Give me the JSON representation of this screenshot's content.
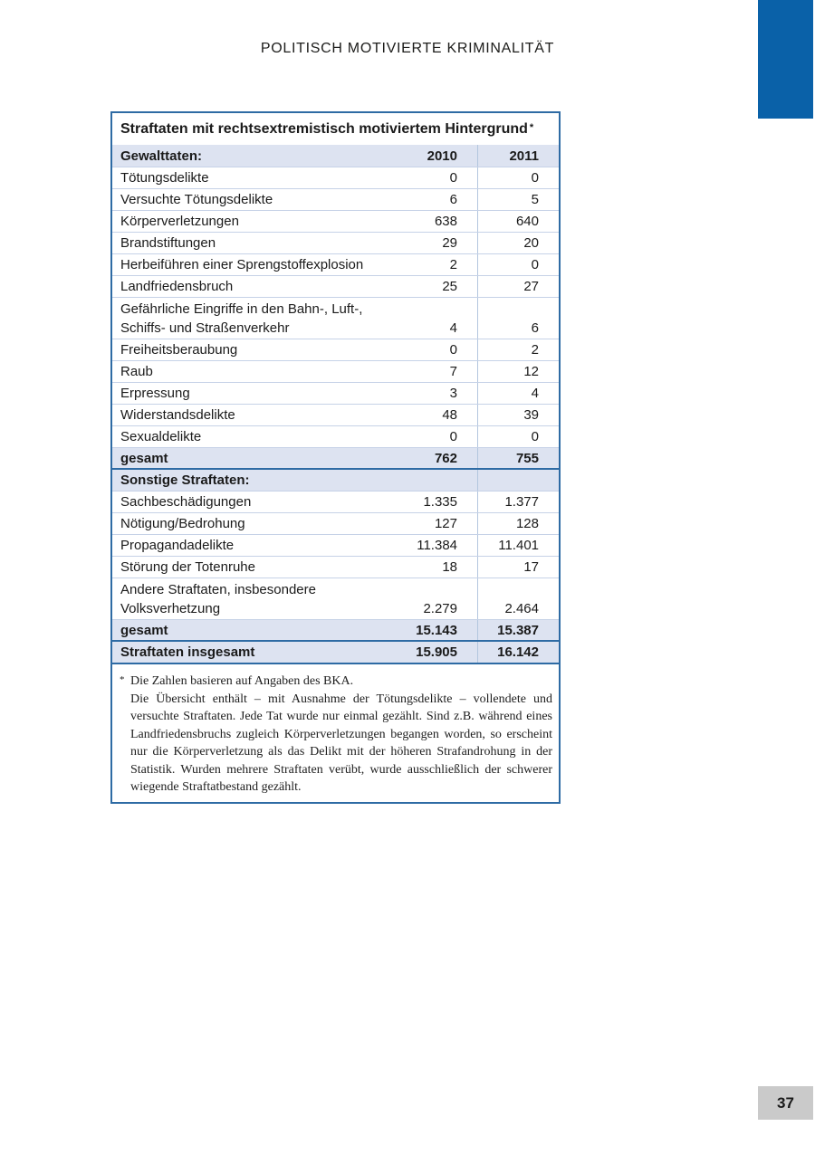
{
  "page": {
    "header": "POLITISCH MOTIVIERTE KRIMINALITÄT",
    "page_number": "37"
  },
  "colors": {
    "corner_block_blue": "#0a61a8",
    "table_border_blue": "#2e6ba4",
    "band_background": "#dde3f1",
    "row_separator": "#c6d2e7",
    "column_separator": "#b3c6de",
    "page_number_gray": "#cacaca"
  },
  "table": {
    "title": "Straftaten mit rechtsextremistisch motiviertem Hintergrund",
    "title_footnote_marker": "*",
    "columns": [
      "2010",
      "2011"
    ],
    "rows": [
      {
        "type": "hdr",
        "label": "Gewalttaten:",
        "v2010": "2010",
        "v2011": "2011"
      },
      {
        "type": "data",
        "label": "Tötungsdelikte",
        "v2010": "0",
        "v2011": "0"
      },
      {
        "type": "data",
        "label": "Versuchte Tötungsdelikte",
        "v2010": "6",
        "v2011": "5"
      },
      {
        "type": "data",
        "label": "Körperverletzungen",
        "v2010": "638",
        "v2011": "640"
      },
      {
        "type": "data",
        "label": "Brandstiftungen",
        "v2010": "29",
        "v2011": "20"
      },
      {
        "type": "data",
        "label": "Herbeiführen einer Sprengstoffexplosion",
        "v2010": "2",
        "v2011": "0"
      },
      {
        "type": "data",
        "label": "Landfriedensbruch",
        "v2010": "25",
        "v2011": "27"
      },
      {
        "type": "data2",
        "label": "Gefährliche Eingriffe in den Bahn-, Luft-,",
        "label2": "Schiffs- und Straßenverkehr",
        "v2010": "4",
        "v2011": "6"
      },
      {
        "type": "data",
        "label": "Freiheitsberaubung",
        "v2010": "0",
        "v2011": "2"
      },
      {
        "type": "data",
        "label": "Raub",
        "v2010": "7",
        "v2011": "12"
      },
      {
        "type": "data",
        "label": "Erpressung",
        "v2010": "3",
        "v2011": "4"
      },
      {
        "type": "data",
        "label": "Widerstandsdelikte",
        "v2010": "48",
        "v2011": "39"
      },
      {
        "type": "data",
        "label": "Sexualdelikte",
        "v2010": "0",
        "v2011": "0"
      },
      {
        "type": "total",
        "label": "gesamt",
        "v2010": "762",
        "v2011": "755"
      },
      {
        "type": "section",
        "label": "Sonstige Straftaten:",
        "v2010": "",
        "v2011": ""
      },
      {
        "type": "data",
        "label": "Sachbeschädigungen",
        "v2010": "1.335",
        "v2011": "1.377"
      },
      {
        "type": "data",
        "label": "Nötigung/Bedrohung",
        "v2010": "127",
        "v2011": "128"
      },
      {
        "type": "data",
        "label": "Propagandadelikte",
        "v2010": "11.384",
        "v2011": "11.401"
      },
      {
        "type": "data",
        "label": "Störung der Totenruhe",
        "v2010": "18",
        "v2011": "17"
      },
      {
        "type": "data2",
        "label": "Andere Straftaten, insbesondere",
        "label2": "Volksverhetzung",
        "v2010": "2.279",
        "v2011": "2.464"
      },
      {
        "type": "total",
        "label": "gesamt",
        "v2010": "15.143",
        "v2011": "15.387"
      },
      {
        "type": "grand",
        "label": "Straftaten insgesamt",
        "v2010": "15.905",
        "v2011": "16.142"
      }
    ]
  },
  "footnote": {
    "marker": "*",
    "line1": "Die Zahlen basieren auf Angaben des BKA.",
    "body": "Die Übersicht enthält – mit Ausnahme der Tötungsdelikte – vollendete und versuchte Straftaten. Jede Tat wurde nur einmal gezählt. Sind z.B. während eines Landfriedensbruchs zugleich Körperverletzungen begangen worden, so erscheint nur die Körperverletzung als das Delikt mit der höheren Strafandrohung in der Statistik. Wurden mehrere Straftaten verübt, wurde ausschließlich der schwerer wiegende Straftatbestand gezählt."
  }
}
